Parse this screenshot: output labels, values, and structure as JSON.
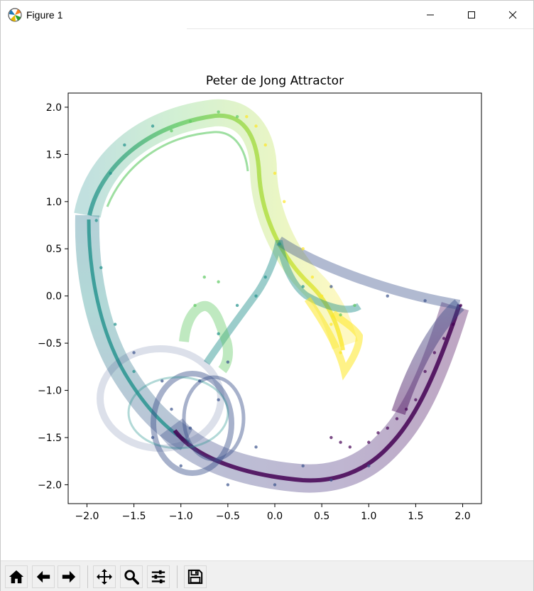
{
  "window": {
    "title": "Figure 1"
  },
  "chart_data": {
    "type": "scatter",
    "title": "Peter de Jong Attractor",
    "xlabel": "",
    "ylabel": "",
    "xlim": [
      -2.2,
      2.2
    ],
    "ylim": [
      -2.2,
      2.15
    ],
    "xticks": [
      -2.0,
      -1.5,
      -1.0,
      -0.5,
      0.0,
      0.5,
      1.0,
      1.5,
      2.0
    ],
    "xtick_labels": [
      "−2.0",
      "−1.5",
      "−1.0",
      "−0.5",
      "0.0",
      "0.5",
      "1.0",
      "1.5",
      "2.0"
    ],
    "yticks": [
      2.0,
      1.5,
      1.0,
      0.5,
      0.0,
      -0.5,
      -1.0,
      -1.5,
      -2.0
    ],
    "ytick_labels": [
      "2.0",
      "1.5",
      "1.0",
      "0.5",
      "0.0",
      "−0.5",
      "−1.0",
      "−1.5",
      "−2.0"
    ],
    "colormap": "viridis",
    "colormap_stops": [
      "#440154",
      "#3b528b",
      "#21918c",
      "#5ec962",
      "#fde725"
    ],
    "grid": false,
    "legend": "none",
    "series": [
      {
        "color": "#440154",
        "points": [
          [
            1.98,
            -0.1
          ],
          [
            1.6,
            -0.8
          ],
          [
            1.3,
            -1.3
          ],
          [
            1.0,
            -1.55
          ],
          [
            0.8,
            -1.6
          ],
          [
            0.6,
            -1.5
          ],
          [
            1.7,
            -0.6
          ],
          [
            1.9,
            -0.3
          ],
          [
            1.5,
            -1.1
          ],
          [
            1.1,
            -1.45
          ],
          [
            0.7,
            -1.55
          ],
          [
            1.8,
            -0.45
          ],
          [
            1.4,
            -1.2
          ],
          [
            1.2,
            -1.4
          ]
        ]
      },
      {
        "color": "#3b528b",
        "points": [
          [
            -0.5,
            -2.0
          ],
          [
            0.0,
            -2.0
          ],
          [
            0.6,
            -1.95
          ],
          [
            1.0,
            -1.8
          ],
          [
            -1.0,
            -1.8
          ],
          [
            -1.3,
            -1.5
          ],
          [
            -1.1,
            -1.2
          ],
          [
            -0.8,
            -0.9
          ],
          [
            -0.5,
            -0.7
          ],
          [
            -0.6,
            -1.1
          ],
          [
            -1.2,
            -0.9
          ],
          [
            -1.5,
            -0.6
          ],
          [
            1.2,
            0.0
          ],
          [
            1.6,
            -0.05
          ],
          [
            0.6,
            0.1
          ],
          [
            -0.2,
            -1.6
          ],
          [
            0.3,
            -1.8
          ],
          [
            -0.9,
            -1.4
          ]
        ]
      },
      {
        "color": "#21918c",
        "points": [
          [
            -1.9,
            0.8
          ],
          [
            -1.85,
            0.3
          ],
          [
            -1.7,
            -0.3
          ],
          [
            -1.5,
            -0.8
          ],
          [
            0.05,
            0.55
          ],
          [
            -0.1,
            0.2
          ],
          [
            -0.4,
            -0.1
          ],
          [
            -0.6,
            -0.4
          ],
          [
            -0.2,
            0.0
          ],
          [
            0.3,
            0.1
          ],
          [
            -1.75,
            1.3
          ],
          [
            -1.6,
            1.6
          ],
          [
            -1.3,
            1.8
          ]
        ]
      },
      {
        "color": "#5ec962",
        "points": [
          [
            -0.75,
            0.2
          ],
          [
            -0.85,
            -0.1
          ],
          [
            -0.6,
            0.15
          ],
          [
            -0.9,
            1.85
          ],
          [
            -0.6,
            1.95
          ],
          [
            0.7,
            -0.2
          ],
          [
            0.85,
            -0.1
          ],
          [
            -1.1,
            1.75
          ],
          [
            -0.4,
            1.9
          ]
        ]
      },
      {
        "color": "#fde725",
        "points": [
          [
            -0.3,
            1.9
          ],
          [
            -0.1,
            1.6
          ],
          [
            0.1,
            1.0
          ],
          [
            0.3,
            0.5
          ],
          [
            0.5,
            0.0
          ],
          [
            0.7,
            -0.6
          ],
          [
            0.6,
            -0.3
          ],
          [
            -0.2,
            1.8
          ],
          [
            0.0,
            1.3
          ],
          [
            0.4,
            0.2
          ]
        ]
      }
    ]
  },
  "toolbar": {
    "buttons": [
      "home",
      "back",
      "forward",
      "pan",
      "zoom",
      "configure-subplots",
      "save"
    ]
  }
}
